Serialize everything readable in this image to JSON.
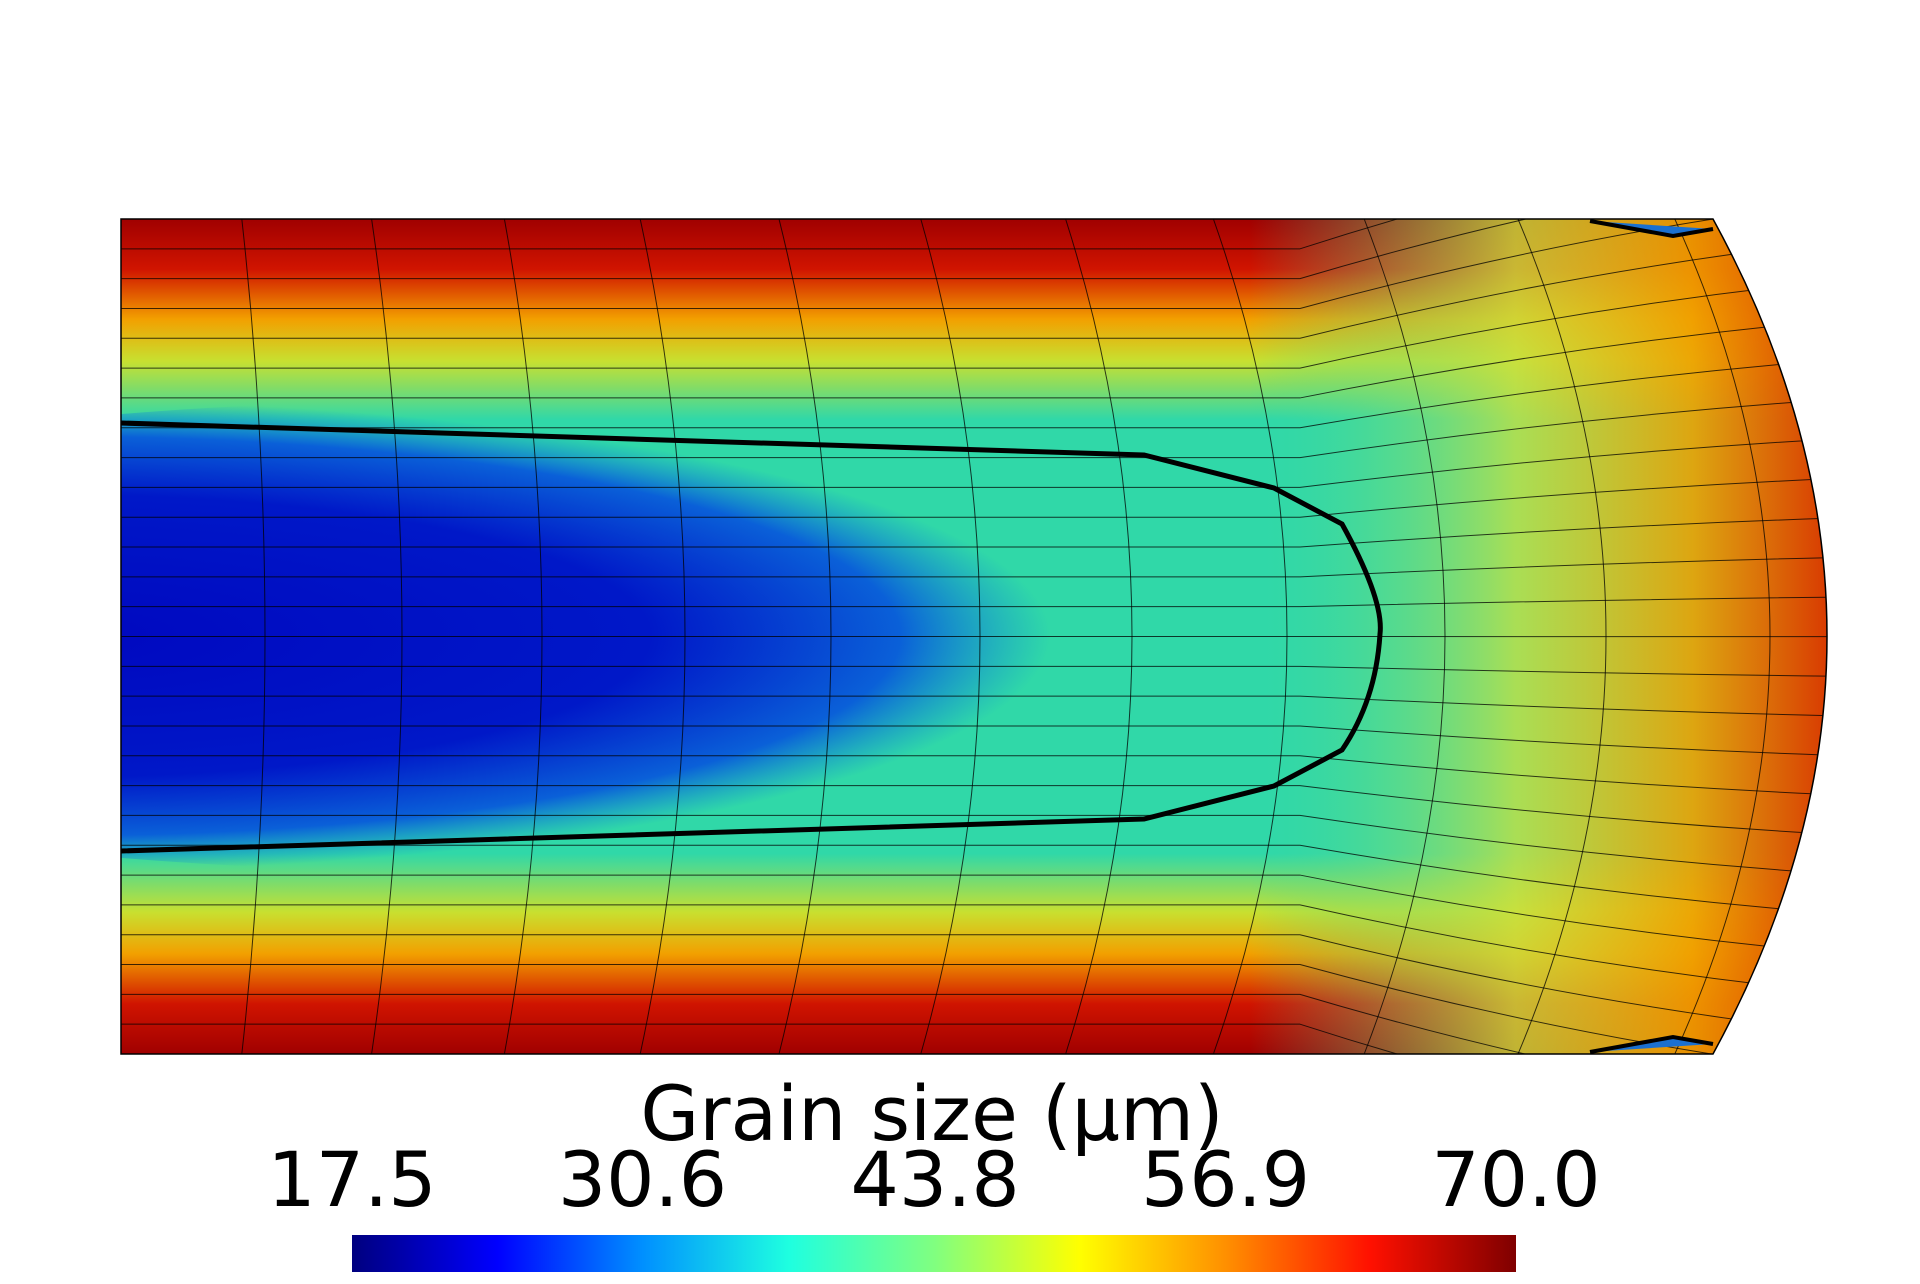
{
  "chart_data": {
    "type": "contour",
    "colorbar_title": "Grain size (μm)",
    "clim": [
      17.5,
      70
    ],
    "colorbar_ticks": [
      17.5,
      30.6,
      43.8,
      56.9,
      {
        "value": 70,
        "label": "70.0"
      }
    ],
    "colormap": [
      "#00007f",
      "#0000ff",
      "#0090ff",
      "#1effe0",
      "#80ff80",
      "#ffff00",
      "#ff9000",
      "#ff1000",
      "#7f0000"
    ]
  }
}
